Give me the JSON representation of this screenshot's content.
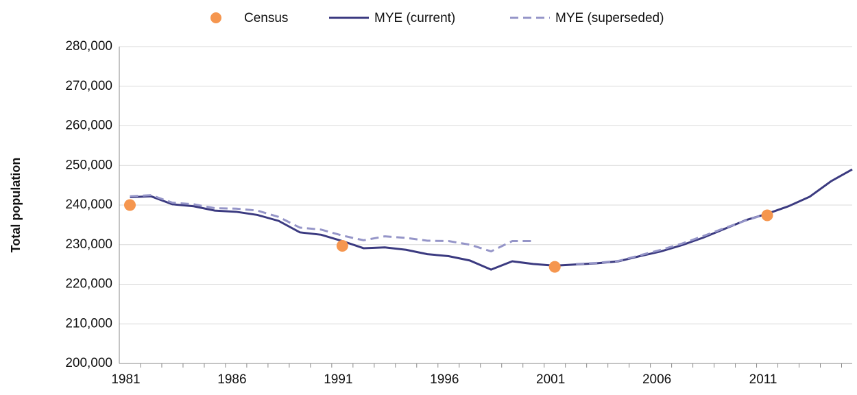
{
  "chart_data": {
    "type": "line",
    "y_label": "Total population",
    "x": [
      1981,
      1982,
      1983,
      1984,
      1985,
      1986,
      1987,
      1988,
      1989,
      1990,
      1991,
      1992,
      1993,
      1994,
      1995,
      1996,
      1997,
      1998,
      1999,
      2000,
      2001,
      2002,
      2003,
      2004,
      2005,
      2006,
      2007,
      2008,
      2009,
      2010,
      2011,
      2012,
      2013,
      2014,
      2015
    ],
    "series": [
      {
        "name": "MYE (current)",
        "color": "#3b3a80",
        "dashed": false,
        "values": [
          242000,
          242200,
          240200,
          239700,
          238600,
          238300,
          237500,
          236000,
          233100,
          232500,
          230900,
          229100,
          229300,
          228700,
          227600,
          227100,
          226000,
          223700,
          225800,
          225100,
          224700,
          225000,
          225300,
          225800,
          227100,
          228300,
          229900,
          231800,
          234000,
          236200,
          237800,
          239700,
          242100,
          246000,
          249000
        ]
      },
      {
        "name": "MYE (superseded)",
        "color": "#9595c8",
        "dashed": true,
        "values": [
          242200,
          242500,
          240600,
          240200,
          239200,
          239100,
          238600,
          237000,
          234300,
          233800,
          232300,
          231100,
          232100,
          231700,
          231000,
          230900,
          230000,
          228300,
          230900,
          230900,
          null,
          225100,
          225400,
          225900,
          227300,
          228700,
          230300,
          232200,
          234200,
          236100,
          237800,
          null,
          null,
          null,
          null
        ]
      }
    ],
    "points": {
      "name": "Census",
      "color": "#f5964f",
      "x": [
        1981,
        1991,
        2001,
        2011
      ],
      "values": [
        240000,
        229700,
        224400,
        237400
      ]
    },
    "xlim": [
      1980.5,
      2015
    ],
    "xticks": [
      1981,
      1986,
      1991,
      1996,
      2001,
      2006,
      2011
    ],
    "ylim": [
      200000,
      280000
    ],
    "yticks": [
      {
        "value": 200000,
        "label": "200,000"
      },
      {
        "value": 210000,
        "label": "210,000"
      },
      {
        "value": 220000,
        "label": "220,000"
      },
      {
        "value": 230000,
        "label": "230,000"
      },
      {
        "value": 240000,
        "label": "240,000"
      },
      {
        "value": 250000,
        "label": "250,000"
      },
      {
        "value": 260000,
        "label": "260,000"
      },
      {
        "value": 270000,
        "label": "270,000"
      },
      {
        "value": 280000,
        "label": "280,000"
      }
    ],
    "grid": true
  }
}
